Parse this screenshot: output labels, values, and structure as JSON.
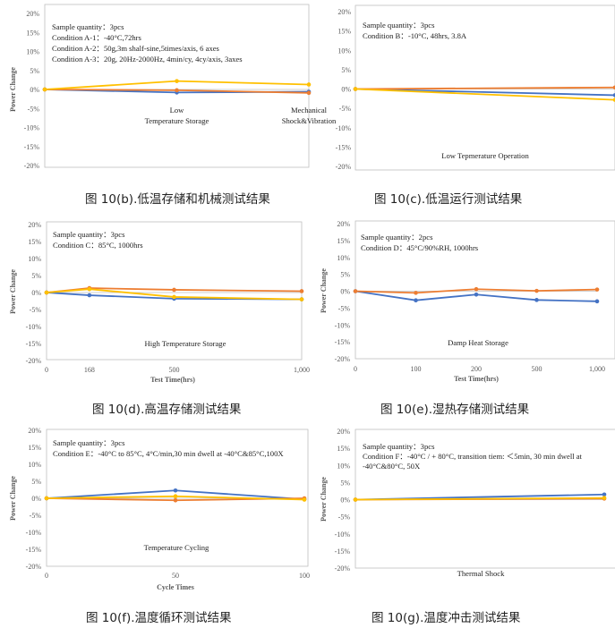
{
  "colors": {
    "blue": "#4472C4",
    "orange": "#ED7D31",
    "yellow": "#FFC000"
  },
  "chart_data": [
    {
      "id": "b",
      "type": "line",
      "ylabel": "Power Change",
      "xlabel": "",
      "ylim": [
        -20,
        20
      ],
      "ytick_labels": [
        "20%",
        "15%",
        "10%",
        "5%",
        "0%",
        "-5%",
        "-10%",
        "-15%",
        "-20%"
      ],
      "categories": [
        "",
        "Low\nTemperature Storage",
        "Mechanical\nShock&Vibration"
      ],
      "notes": [
        "Sample quantity：3pcs",
        "Condition A-1：-40°C,72hrs",
        "Condition A-2：50g,3m shalf-sine,5times/axis, 6 axes",
        "Condition A-3：20g, 20Hz-2000Hz, 4min/cy, 4cy/axis, 3axes"
      ],
      "caption": "图 10(b).低温存储和机械测试结果",
      "series": [
        {
          "color": "blue",
          "values": [
            0,
            -0.8,
            -0.6
          ]
        },
        {
          "color": "orange",
          "values": [
            0,
            -0.2,
            -0.9
          ]
        },
        {
          "color": "yellow",
          "values": [
            0,
            2.2,
            1.3
          ]
        }
      ]
    },
    {
      "id": "c",
      "type": "line",
      "ylabel": "",
      "xlabel": "",
      "ylim": [
        -20,
        20
      ],
      "ytick_labels": [
        "20%",
        "15%",
        "10%",
        "5%",
        "0%",
        "-5%",
        "-10%",
        "-15%",
        "-20%"
      ],
      "categories": [
        "",
        ""
      ],
      "notes": [
        "Sample quantity：3pcs",
        "Condition B：-10°C, 48hrs, 3.8A"
      ],
      "title": "Low Tepmerature Operation",
      "caption": "图 10(c).低温运行测试结果",
      "series": [
        {
          "color": "blue",
          "values": [
            0,
            -1.6
          ]
        },
        {
          "color": "orange",
          "values": [
            0,
            0.4
          ]
        },
        {
          "color": "yellow",
          "values": [
            0,
            -2.8
          ]
        }
      ]
    },
    {
      "id": "d",
      "type": "line",
      "ylabel": "Power Change",
      "xlabel": "Test Time(hrs)",
      "ylim": [
        -20,
        20
      ],
      "ytick_labels": [
        "20%",
        "15%",
        "10%",
        "5%",
        "0%",
        "-5%",
        "-10%",
        "-15%",
        "-20%"
      ],
      "categories": [
        "0",
        "168",
        "500",
        "1,000"
      ],
      "x": [
        0,
        168,
        500,
        1000
      ],
      "xlim": [
        0,
        1000
      ],
      "notes": [
        "Sample quantity：3pcs",
        "Condition C：85°C, 1000hrs"
      ],
      "title": "High Temperature Storage",
      "caption": "图 10(d).高温存储测试结果",
      "series": [
        {
          "color": "blue",
          "values": [
            0,
            -0.8,
            -1.8,
            -2.0
          ]
        },
        {
          "color": "orange",
          "values": [
            0,
            1.3,
            0.8,
            0.4
          ]
        },
        {
          "color": "yellow",
          "values": [
            0,
            1.0,
            -1.3,
            -2.0
          ]
        }
      ]
    },
    {
      "id": "e",
      "type": "line",
      "ylabel": "Power Change",
      "xlabel": "Test Time(hrs)",
      "ylim": [
        -20,
        20
      ],
      "ytick_labels": [
        "20%",
        "15%",
        "10%",
        "5%",
        "0%",
        "-5%",
        "-10%",
        "-15%",
        "-20%"
      ],
      "categories": [
        "0",
        "100",
        "200",
        "500",
        "1,000"
      ],
      "notes": [
        "Sample quantity：2pcs",
        "Condition D：45°C/90%RH, 1000hrs"
      ],
      "title": "Damp Heat Storage",
      "caption": "图 10(e).湿热存储测试结果",
      "series": [
        {
          "color": "blue",
          "values": [
            0,
            -2.7,
            -1.0,
            -2.6,
            -3.0
          ]
        },
        {
          "color": "orange",
          "values": [
            0,
            -0.5,
            0.6,
            0.1,
            0.5
          ]
        }
      ]
    },
    {
      "id": "f",
      "type": "line",
      "ylabel": "Power Change",
      "xlabel": "Cycle Times",
      "ylim": [
        -20,
        20
      ],
      "ytick_labels": [
        "20%",
        "15%",
        "10%",
        "5%",
        "0%",
        "-5%",
        "-10%",
        "-15%",
        "-20%"
      ],
      "categories": [
        "0",
        "50",
        "100"
      ],
      "notes": [
        "Sample quantity：3pcs",
        "Condition E：-40°C to 85°C, 4°C/min,30 min dwell at -40°C&85°C,100X"
      ],
      "title": "Temperature Cycling",
      "caption": "图 10(f).温度循环测试结果",
      "series": [
        {
          "color": "blue",
          "values": [
            0,
            2.3,
            -0.3
          ]
        },
        {
          "color": "orange",
          "values": [
            0,
            -0.6,
            0.0
          ]
        },
        {
          "color": "yellow",
          "values": [
            0,
            0.6,
            -0.4
          ]
        }
      ]
    },
    {
      "id": "g",
      "type": "line",
      "ylabel": "Power Change",
      "xlabel": "",
      "ylim": [
        -20,
        20
      ],
      "ytick_labels": [
        "20%",
        "15%",
        "10%",
        "5%",
        "0%",
        "-5%",
        "-10%",
        "-15%",
        "-20%"
      ],
      "categories": [
        "",
        ""
      ],
      "notes": [
        "Sample quantity：3pcs",
        "Condition F：-40°C / + 80°C, transition tiem: ＜5min, 30 min dwell at",
        "-40°C&80°C, 50X"
      ],
      "title": "Thermal Shock",
      "caption": "图 10(g).温度冲击测试结果",
      "series": [
        {
          "color": "blue",
          "values": [
            0,
            1.5
          ]
        },
        {
          "color": "orange",
          "values": [
            0,
            0.3
          ]
        },
        {
          "color": "yellow",
          "values": [
            0,
            0.5
          ]
        }
      ]
    }
  ]
}
